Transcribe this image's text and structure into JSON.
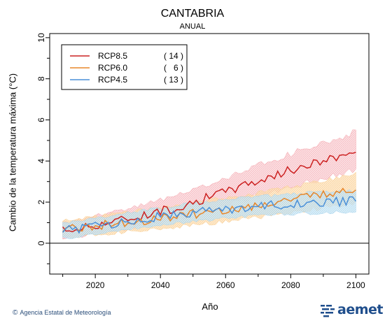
{
  "chart_data": {
    "type": "line",
    "title": "CANTABRIA",
    "subtitle": "ANUAL",
    "xlabel": "Año",
    "ylabel": "Cambio  de la temperatura máxima (°C)",
    "xlim": [
      2006,
      2104
    ],
    "ylim": [
      -1.5,
      10.2
    ],
    "xticks": [
      2020,
      2040,
      2060,
      2080,
      2100
    ],
    "yticks": [
      0,
      2,
      4,
      6,
      8,
      10
    ],
    "legend_position": "top-left",
    "grid": false,
    "x_start": 2010,
    "x_end": 2100,
    "series": [
      {
        "name": "RCP8.5",
        "count": "( 14 )",
        "color": "#cc2222",
        "band_color": "#f4a0a8",
        "anchors": [
          [
            2010,
            0.62
          ],
          [
            2015,
            0.72
          ],
          [
            2020,
            0.9
          ],
          [
            2025,
            1.05
          ],
          [
            2030,
            1.2
          ],
          [
            2035,
            1.38
          ],
          [
            2040,
            1.55
          ],
          [
            2045,
            1.75
          ],
          [
            2050,
            2.0
          ],
          [
            2055,
            2.25
          ],
          [
            2060,
            2.5
          ],
          [
            2065,
            2.8
          ],
          [
            2070,
            3.05
          ],
          [
            2075,
            3.3
          ],
          [
            2080,
            3.55
          ],
          [
            2085,
            3.8
          ],
          [
            2090,
            4.0
          ],
          [
            2095,
            4.25
          ],
          [
            2100,
            4.5
          ]
        ],
        "band_halfwidth_start": 0.4,
        "band_halfwidth_end": 1.0
      },
      {
        "name": "RCP6.0",
        "count": "(   6 )",
        "color": "#e8872a",
        "band_color": "#f9cf95",
        "anchors": [
          [
            2010,
            0.72
          ],
          [
            2015,
            0.75
          ],
          [
            2020,
            0.85
          ],
          [
            2025,
            0.95
          ],
          [
            2030,
            1.05
          ],
          [
            2035,
            1.12
          ],
          [
            2040,
            1.22
          ],
          [
            2045,
            1.32
          ],
          [
            2050,
            1.42
          ],
          [
            2055,
            1.52
          ],
          [
            2060,
            1.62
          ],
          [
            2065,
            1.72
          ],
          [
            2070,
            1.85
          ],
          [
            2075,
            1.98
          ],
          [
            2080,
            2.1
          ],
          [
            2085,
            2.25
          ],
          [
            2090,
            2.4
          ],
          [
            2095,
            2.55
          ],
          [
            2100,
            2.65
          ]
        ],
        "band_halfwidth_start": 0.45,
        "band_halfwidth_end": 0.75
      },
      {
        "name": "RCP4.5",
        "count": "( 13 )",
        "color": "#4a90d9",
        "band_color": "#a8d4ee",
        "anchors": [
          [
            2010,
            0.6
          ],
          [
            2015,
            0.7
          ],
          [
            2020,
            0.82
          ],
          [
            2025,
            0.95
          ],
          [
            2030,
            1.08
          ],
          [
            2035,
            1.2
          ],
          [
            2040,
            1.3
          ],
          [
            2045,
            1.4
          ],
          [
            2050,
            1.5
          ],
          [
            2055,
            1.58
          ],
          [
            2060,
            1.66
          ],
          [
            2065,
            1.74
          ],
          [
            2070,
            1.8
          ],
          [
            2075,
            1.85
          ],
          [
            2080,
            1.9
          ],
          [
            2085,
            1.95
          ],
          [
            2090,
            1.98
          ],
          [
            2095,
            2.02
          ],
          [
            2100,
            2.08
          ]
        ],
        "band_halfwidth_start": 0.4,
        "band_halfwidth_end": 0.55
      }
    ]
  },
  "credit": {
    "symbol": "©",
    "text": "Agencia Estatal de Meteorología"
  },
  "logo": {
    "text": "aemet"
  }
}
